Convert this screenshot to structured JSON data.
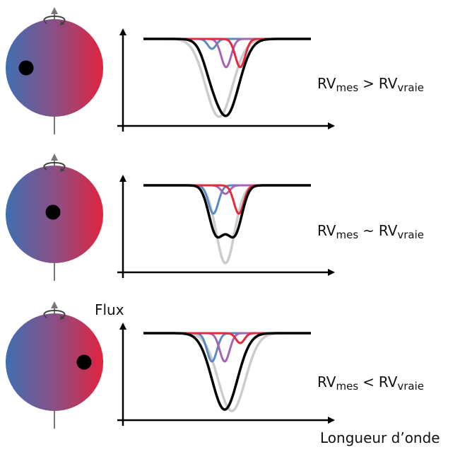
{
  "axes": {
    "y_label": "Flux",
    "x_label": "Longueur d’onde"
  },
  "panels": [
    {
      "spot": "left",
      "relation": {
        "lhs": "RV",
        "lhs_sub": "mes",
        "op": ">",
        "rhs": "RV",
        "rhs_sub": "vraie"
      }
    },
    {
      "spot": "center",
      "relation": {
        "lhs": "RV",
        "lhs_sub": "mes",
        "op": "~",
        "rhs": "RV",
        "rhs_sub": "vraie"
      }
    },
    {
      "spot": "right",
      "relation": {
        "lhs": "RV",
        "lhs_sub": "mes",
        "op": "<",
        "rhs": "RV",
        "rhs_sub": "vraie"
      }
    }
  ],
  "colors": {
    "star_blue": "#3f6fb2",
    "star_mid": "#8a4f86",
    "star_red": "#e2233d",
    "line_blue": "#5a8ac4",
    "line_violet": "#a565b4",
    "line_red": "#e32a3e",
    "line_total": "#000000",
    "line_unspotted": "#cccccc",
    "axis": "#000000",
    "rotation_axis": "#777777"
  }
}
